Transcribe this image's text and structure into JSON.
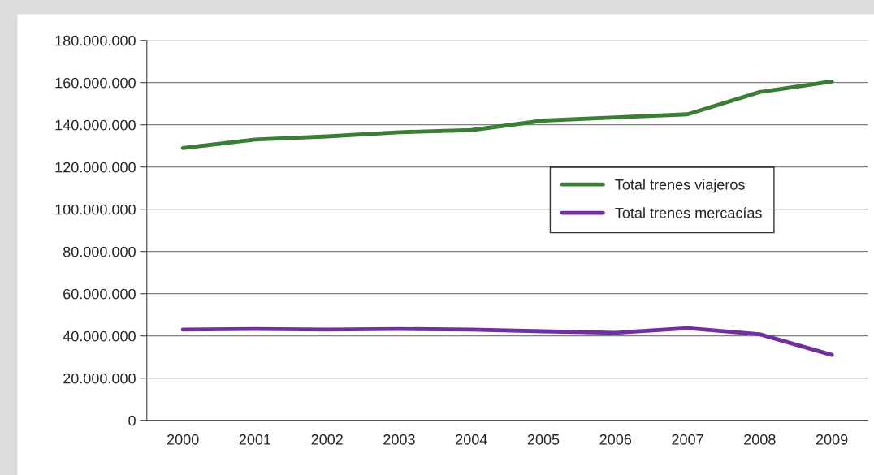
{
  "chart_data": {
    "type": "line",
    "categories": [
      "2000",
      "2001",
      "2002",
      "2003",
      "2004",
      "2005",
      "2006",
      "2007",
      "2008",
      "2009"
    ],
    "series": [
      {
        "name": "Total trenes viajeros",
        "color": "#3a7d35",
        "values": [
          129000000,
          133000000,
          134500000,
          136500000,
          137500000,
          142000000,
          143500000,
          145000000,
          155500000,
          160500000
        ]
      },
      {
        "name": "Total trenes mercacías",
        "color": "#7030a0",
        "values": [
          43000000,
          43300000,
          43000000,
          43300000,
          43000000,
          42200000,
          41500000,
          43700000,
          40800000,
          31000000
        ]
      }
    ],
    "ylim": [
      0,
      180000000
    ],
    "yticks": [
      {
        "value": 0,
        "label": "0"
      },
      {
        "value": 20000000,
        "label": "20.000.000"
      },
      {
        "value": 40000000,
        "label": "40.000.000"
      },
      {
        "value": 60000000,
        "label": "60.000.000"
      },
      {
        "value": 80000000,
        "label": "80.000.000"
      },
      {
        "value": 100000000,
        "label": "100.000.000"
      },
      {
        "value": 120000000,
        "label": "120.000.000"
      },
      {
        "value": 140000000,
        "label": "140.000.000"
      },
      {
        "value": 160000000,
        "label": "160.000.000"
      },
      {
        "value": 180000000,
        "label": "180.000.000"
      }
    ],
    "grid": "y",
    "legend": "right",
    "marker": "none",
    "line_style": "solid"
  }
}
